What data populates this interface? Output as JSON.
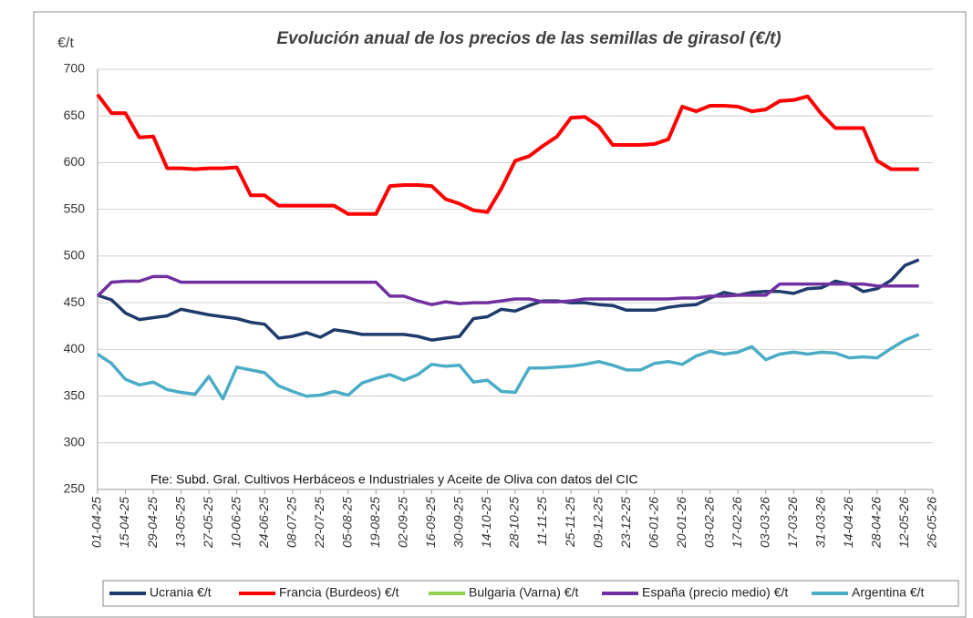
{
  "chart_data": {
    "type": "line",
    "title": "Evolución anual de los precios de las semillas de girasol (€/t)",
    "y_label": "€/t",
    "annotation": "Fte: Subd. Gral. Cultivos Herbáceos e Industriales y Aceite de Oliva con datos del CIC",
    "categories": [
      "01-04-25",
      null,
      "15-04-25",
      null,
      "29-04-25",
      null,
      "13-05-25",
      null,
      "27-05-25",
      null,
      "10-06-25",
      null,
      "24-06-25",
      null,
      "08-07-25",
      null,
      "22-07-25",
      null,
      "05-08-25",
      null,
      "19-08-25",
      null,
      "02-09-25",
      null,
      "16-09-25",
      null,
      "30-09-25",
      null,
      "14-10-25",
      null,
      "28-10-25",
      null,
      "11-11-25",
      null,
      "25-11-25",
      null,
      "09-12-25",
      null,
      "23-12-25",
      null,
      "06-01-26",
      null,
      "20-01-26",
      null,
      "03-02-26",
      null,
      "17-02-26",
      null,
      "03-03-26",
      null,
      "17-03-26",
      null,
      "31-03-26",
      null,
      "14-04-26",
      null,
      "28-04-26",
      null,
      "12-05-26",
      null,
      "26-05-26"
    ],
    "series": [
      {
        "name": "Ucrania €/t",
        "color": "#1f3b6b",
        "values": [
          458,
          453,
          439,
          432,
          434,
          436,
          443,
          440,
          437,
          435,
          433,
          429,
          427,
          412,
          414,
          418,
          413,
          421,
          419,
          416,
          416,
          416,
          416,
          414,
          410,
          412,
          414,
          433,
          435,
          443,
          441,
          447,
          452,
          452,
          450,
          450,
          448,
          447,
          442,
          442,
          442,
          445,
          447,
          448,
          455,
          461,
          458,
          461,
          462,
          462,
          460,
          465,
          466,
          473,
          470,
          462,
          465,
          474,
          490,
          496,
          null
        ]
      },
      {
        "name": "Francia (Burdeos) €/t",
        "color": "#ff0000",
        "values": [
          673,
          653,
          653,
          627,
          628,
          594,
          594,
          593,
          594,
          594,
          595,
          565,
          565,
          554,
          554,
          554,
          554,
          554,
          545,
          545,
          545,
          575,
          576,
          576,
          575,
          561,
          556,
          549,
          547,
          572,
          602,
          607,
          618,
          628,
          648,
          649,
          639,
          619,
          619,
          619,
          620,
          625,
          660,
          655,
          661,
          661,
          660,
          655,
          657,
          666,
          667,
          671,
          652,
          637,
          637,
          637,
          602,
          593,
          593,
          593,
          null
        ]
      },
      {
        "name": "Bulgaria (Varna) €/t",
        "color": "#92d050",
        "values": [
          null,
          null,
          null,
          null,
          null,
          null,
          null,
          null,
          null,
          null,
          null,
          null,
          null,
          null,
          null,
          null,
          null,
          null,
          null,
          null,
          null,
          null,
          null,
          null,
          null,
          null,
          null,
          null,
          null,
          null,
          null,
          null,
          null,
          null,
          null,
          null,
          null,
          null,
          null,
          null,
          null,
          null,
          null,
          null,
          null,
          null,
          null,
          null,
          null,
          null,
          null,
          null,
          null,
          null,
          null,
          null,
          null,
          null,
          null,
          null,
          null
        ]
      },
      {
        "name": "España (precio medio) €/t",
        "color": "#7030a0",
        "values": [
          457,
          472,
          473,
          473,
          478,
          478,
          472,
          472,
          472,
          472,
          472,
          472,
          472,
          472,
          472,
          472,
          472,
          472,
          472,
          472,
          472,
          457,
          457,
          452,
          448,
          451,
          449,
          450,
          450,
          452,
          454,
          454,
          451,
          451,
          452,
          454,
          454,
          454,
          454,
          454,
          454,
          454,
          455,
          455,
          457,
          457,
          458,
          458,
          458,
          470,
          470,
          470,
          470,
          470,
          470,
          470,
          468,
          468,
          468,
          468,
          null
        ]
      },
      {
        "name": "Argentina €/t",
        "color": "#4bacc6",
        "values": [
          395,
          385,
          368,
          362,
          365,
          357,
          354,
          352,
          371,
          347,
          381,
          378,
          375,
          361,
          355,
          350,
          351,
          355,
          351,
          364,
          369,
          373,
          367,
          373,
          384,
          382,
          383,
          365,
          367,
          355,
          354,
          380,
          380,
          381,
          382,
          384,
          387,
          383,
          378,
          378,
          385,
          387,
          384,
          393,
          398,
          395,
          397,
          403,
          389,
          395,
          397,
          395,
          397,
          396,
          391,
          392,
          391,
          401,
          410,
          416,
          null
        ]
      }
    ],
    "ylim": [
      250,
      700
    ],
    "yticks": [
      250,
      300,
      350,
      400,
      450,
      500,
      550,
      600,
      650,
      700
    ],
    "grid": true
  }
}
